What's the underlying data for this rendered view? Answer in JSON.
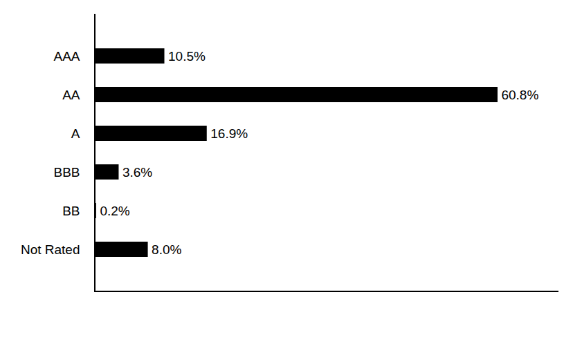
{
  "chart_data": {
    "type": "bar",
    "orientation": "horizontal",
    "categories": [
      "AAA",
      "AA",
      "A",
      "BBB",
      "BB",
      "Not Rated"
    ],
    "values": [
      10.5,
      60.8,
      16.9,
      3.6,
      0.2,
      8.0
    ],
    "value_labels": [
      "10.5%",
      "60.8%",
      "16.9%",
      "3.6%",
      "0.2%",
      "8.0%"
    ],
    "color": "#000000",
    "xlim": [
      0,
      70
    ],
    "data_labels": true,
    "tick_labels": "y",
    "grid": false
  }
}
